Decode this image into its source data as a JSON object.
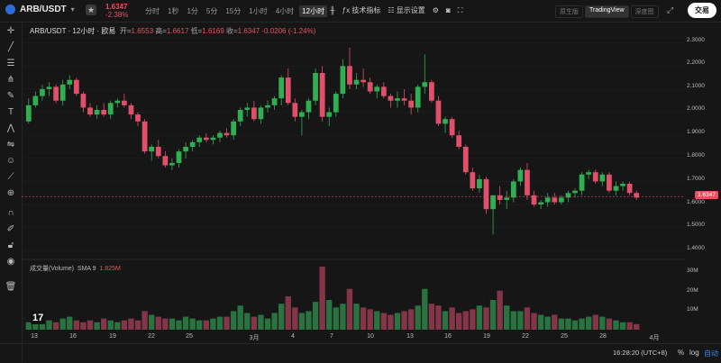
{
  "header": {
    "symbol": "ARB/USDT",
    "price": "1.6347",
    "change": "-2.38%",
    "intervals": [
      {
        "label": "分时",
        "active": false
      },
      {
        "label": "1秒",
        "active": false
      },
      {
        "label": "1分",
        "active": false
      },
      {
        "label": "5分",
        "active": false
      },
      {
        "label": "15分",
        "active": false
      },
      {
        "label": "1小时",
        "active": false
      },
      {
        "label": "4小时",
        "active": false
      },
      {
        "label": "12小时",
        "active": true
      }
    ],
    "indicators_label": "技术指标",
    "display_label": "显示设置",
    "views": [
      {
        "label": "原生版",
        "active": false
      },
      {
        "label": "TradingView",
        "active": true
      },
      {
        "label": "深度图",
        "active": false
      }
    ],
    "trade_label": "交易"
  },
  "legend": {
    "title": "ARB/USDT · 12小时 · 欧易",
    "open_label": "开=",
    "open": "1.6553",
    "high_label": "高=",
    "high": "1.6617",
    "low_label": "低=",
    "low": "1.6169",
    "close_label": "收=",
    "close": "1.6347",
    "change": "-0.0206 (-1.24%)"
  },
  "volume_legend": {
    "title": "成交量(Volume)",
    "sma": "SMA 9",
    "value": "1.825M"
  },
  "axis": {
    "price_ticks": [
      "2.3000",
      "2.2000",
      "2.1000",
      "2.0000",
      "1.9000",
      "1.8000",
      "1.7000",
      "1.6000",
      "1.5000",
      "1.4000"
    ],
    "volume_ticks": [
      "30M",
      "20M",
      "10M"
    ],
    "current_price": "1.6347",
    "x_ticks": [
      "13",
      "16",
      "19",
      "22",
      "25",
      "3月",
      "4",
      "7",
      "10",
      "13",
      "16",
      "19",
      "22",
      "25",
      "28",
      "4月"
    ]
  },
  "footer": {
    "clock": "16:28:20 (UTC+8)",
    "pct": "%",
    "log": "log",
    "auto": "自动"
  },
  "colors": {
    "up": "#2fae52",
    "down": "#e0506a",
    "background": "#161616",
    "grid": "#222222"
  },
  "chart_data": {
    "type": "candlestick",
    "ylim": [
      1.37,
      2.33
    ],
    "candles": [
      [
        1.96,
        2.06,
        1.95,
        2.03
      ],
      [
        2.03,
        2.09,
        2.02,
        2.07
      ],
      [
        2.07,
        2.12,
        2.05,
        2.1
      ],
      [
        2.1,
        2.13,
        2.07,
        2.11
      ],
      [
        2.11,
        2.12,
        2.04,
        2.05
      ],
      [
        2.05,
        2.14,
        2.03,
        2.12
      ],
      [
        2.12,
        2.16,
        2.1,
        2.14
      ],
      [
        2.14,
        2.15,
        2.07,
        2.08
      ],
      [
        2.08,
        2.09,
        2.0,
        2.02
      ],
      [
        2.02,
        2.04,
        1.98,
        1.99
      ],
      [
        1.99,
        2.03,
        1.97,
        2.01
      ],
      [
        2.01,
        2.04,
        1.98,
        1.99
      ],
      [
        1.99,
        2.05,
        1.97,
        2.04
      ],
      [
        2.04,
        2.06,
        2.02,
        2.05
      ],
      [
        2.05,
        2.08,
        2.02,
        2.03
      ],
      [
        2.03,
        2.04,
        1.97,
        1.99
      ],
      [
        1.99,
        2.0,
        1.94,
        1.96
      ],
      [
        1.96,
        1.97,
        1.82,
        1.83
      ],
      [
        1.83,
        1.86,
        1.79,
        1.85
      ],
      [
        1.85,
        1.88,
        1.8,
        1.81
      ],
      [
        1.81,
        1.83,
        1.76,
        1.77
      ],
      [
        1.77,
        1.8,
        1.75,
        1.78
      ],
      [
        1.78,
        1.84,
        1.76,
        1.83
      ],
      [
        1.83,
        1.87,
        1.8,
        1.85
      ],
      [
        1.85,
        1.88,
        1.83,
        1.87
      ],
      [
        1.87,
        1.9,
        1.85,
        1.89
      ],
      [
        1.89,
        1.91,
        1.87,
        1.88
      ],
      [
        1.88,
        1.9,
        1.86,
        1.89
      ],
      [
        1.89,
        1.92,
        1.87,
        1.91
      ],
      [
        1.91,
        1.93,
        1.89,
        1.9
      ],
      [
        1.9,
        1.97,
        1.88,
        1.96
      ],
      [
        1.96,
        2.02,
        1.94,
        2.01
      ],
      [
        2.01,
        2.04,
        1.98,
        2.02
      ],
      [
        2.02,
        2.05,
        1.96,
        1.97
      ],
      [
        1.97,
        2.03,
        1.95,
        2.02
      ],
      [
        2.02,
        2.05,
        2.0,
        2.03
      ],
      [
        2.03,
        2.07,
        2.01,
        2.06
      ],
      [
        2.06,
        2.16,
        2.03,
        2.15
      ],
      [
        2.15,
        2.19,
        2.03,
        2.04
      ],
      [
        2.04,
        2.06,
        1.96,
        1.98
      ],
      [
        1.98,
        2.01,
        1.9,
        2.0
      ],
      [
        2.0,
        2.06,
        1.97,
        2.05
      ],
      [
        2.05,
        2.19,
        2.03,
        2.17
      ],
      [
        2.17,
        2.2,
        1.96,
        1.98
      ],
      [
        1.98,
        2.02,
        1.94,
        2.0
      ],
      [
        2.0,
        2.09,
        1.98,
        2.08
      ],
      [
        2.08,
        2.23,
        2.06,
        2.2
      ],
      [
        2.2,
        2.28,
        2.1,
        2.12
      ],
      [
        2.12,
        2.17,
        2.1,
        2.14
      ],
      [
        2.14,
        2.19,
        2.11,
        2.13
      ],
      [
        2.13,
        2.15,
        2.08,
        2.09
      ],
      [
        2.09,
        2.12,
        2.06,
        2.11
      ],
      [
        2.11,
        2.13,
        2.06,
        2.07
      ],
      [
        2.07,
        2.08,
        2.02,
        2.05
      ],
      [
        2.05,
        2.09,
        2.02,
        2.06
      ],
      [
        2.06,
        2.1,
        2.03,
        2.05
      ],
      [
        2.05,
        2.08,
        1.99,
        2.02
      ],
      [
        2.02,
        2.12,
        2.0,
        2.11
      ],
      [
        2.11,
        2.25,
        2.08,
        2.13
      ],
      [
        2.13,
        2.14,
        2.04,
        2.05
      ],
      [
        2.05,
        2.07,
        1.94,
        1.95
      ],
      [
        1.95,
        1.98,
        1.91,
        1.97
      ],
      [
        1.97,
        1.98,
        1.89,
        1.9
      ],
      [
        1.9,
        1.92,
        1.84,
        1.85
      ],
      [
        1.85,
        1.86,
        1.73,
        1.74
      ],
      [
        1.74,
        1.76,
        1.66,
        1.67
      ],
      [
        1.67,
        1.73,
        1.65,
        1.71
      ],
      [
        1.71,
        1.72,
        1.56,
        1.58
      ],
      [
        1.58,
        1.64,
        1.47,
        1.64
      ],
      [
        1.64,
        1.68,
        1.6,
        1.62
      ],
      [
        1.62,
        1.66,
        1.58,
        1.63
      ],
      [
        1.63,
        1.71,
        1.61,
        1.7
      ],
      [
        1.7,
        1.76,
        1.68,
        1.75
      ],
      [
        1.75,
        1.78,
        1.62,
        1.64
      ],
      [
        1.64,
        1.66,
        1.59,
        1.6
      ],
      [
        1.6,
        1.62,
        1.58,
        1.61
      ],
      [
        1.61,
        1.65,
        1.59,
        1.63
      ],
      [
        1.63,
        1.65,
        1.6,
        1.61
      ],
      [
        1.61,
        1.64,
        1.6,
        1.63
      ],
      [
        1.63,
        1.66,
        1.61,
        1.65
      ],
      [
        1.65,
        1.67,
        1.63,
        1.66
      ],
      [
        1.66,
        1.74,
        1.64,
        1.73
      ],
      [
        1.73,
        1.75,
        1.71,
        1.74
      ],
      [
        1.74,
        1.75,
        1.69,
        1.7
      ],
      [
        1.7,
        1.74,
        1.68,
        1.73
      ],
      [
        1.73,
        1.74,
        1.65,
        1.66
      ],
      [
        1.66,
        1.7,
        1.64,
        1.68
      ],
      [
        1.68,
        1.7,
        1.66,
        1.69
      ],
      [
        1.69,
        1.7,
        1.64,
        1.65
      ],
      [
        1.65,
        1.66,
        1.62,
        1.63
      ]
    ],
    "volume_ylim": [
      0,
      34
    ],
    "volumes": [
      4,
      5,
      6,
      5,
      4,
      6,
      7,
      5,
      4,
      5,
      4,
      6,
      5,
      4,
      5,
      6,
      5,
      10,
      8,
      7,
      6,
      6,
      5,
      7,
      6,
      5,
      5,
      6,
      7,
      7,
      10,
      13,
      9,
      7,
      8,
      6,
      9,
      14,
      18,
      12,
      9,
      10,
      15,
      34,
      16,
      12,
      14,
      22,
      14,
      12,
      11,
      10,
      9,
      8,
      9,
      10,
      11,
      13,
      22,
      14,
      13,
      10,
      12,
      9,
      10,
      11,
      13,
      12,
      16,
      21,
      13,
      10,
      10,
      12,
      9,
      8,
      7,
      8,
      6,
      6,
      5,
      6,
      7,
      8,
      7,
      6,
      5,
      4,
      4,
      3
    ]
  }
}
